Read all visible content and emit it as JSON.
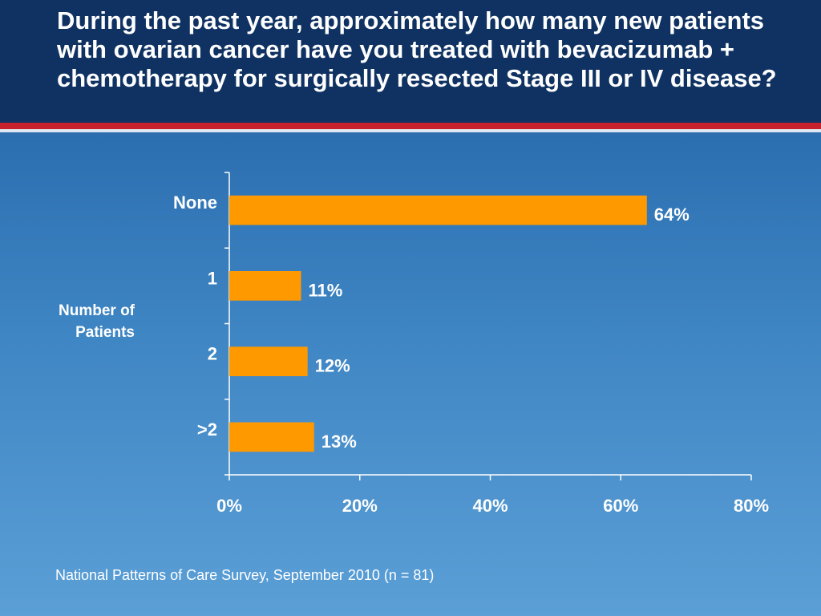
{
  "slide": {
    "title": "During the past year, approximately how many new patients with ovarian cancer have you treated with bevacizumab + chemotherapy for surgically resected Stage III or IV disease?",
    "footnote": "National Patterns of Care Survey, September 2010 (n = 81)"
  },
  "colors": {
    "header_bg": "#0f3262",
    "accent_rule": "#c7212e",
    "bar": "#ff9900",
    "text": "#ffffff"
  },
  "chart_data": {
    "type": "bar",
    "orientation": "horizontal",
    "categories": [
      "None",
      "1",
      "2",
      ">2"
    ],
    "values": [
      64,
      11,
      12,
      13
    ],
    "value_labels": [
      "64%",
      "11%",
      "12%",
      "13%"
    ],
    "ylabel": "Number of\nPatients",
    "xlim": [
      0,
      80
    ],
    "x_ticks": [
      "0%",
      "20%",
      "40%",
      "60%",
      "80%"
    ],
    "grid": false,
    "legend": "none"
  }
}
